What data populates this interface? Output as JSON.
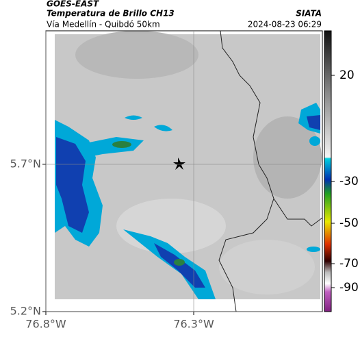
{
  "header": {
    "title": "GOES-EAST",
    "subtitle": "Temperatura de Brillo CH13",
    "location": "Vía Medellín - Quibdó 50km",
    "source": "SIATA",
    "datetime": "2024-08-23 06:29"
  },
  "map": {
    "lat_range": [
      5.2,
      6.153
    ],
    "lon_range": [
      -76.8,
      -75.865
    ],
    "lat_ticks": [
      {
        "value": 5.7,
        "label": "5.7°N"
      },
      {
        "value": 5.2,
        "label": "5.2°N"
      }
    ],
    "lon_ticks": [
      {
        "value": -76.8,
        "label": "76.8°W"
      },
      {
        "value": -76.3,
        "label": "76.3°W"
      }
    ]
  },
  "colorbar": {
    "ticks": [
      20,
      -30,
      -50,
      -70,
      -90
    ]
  }
}
